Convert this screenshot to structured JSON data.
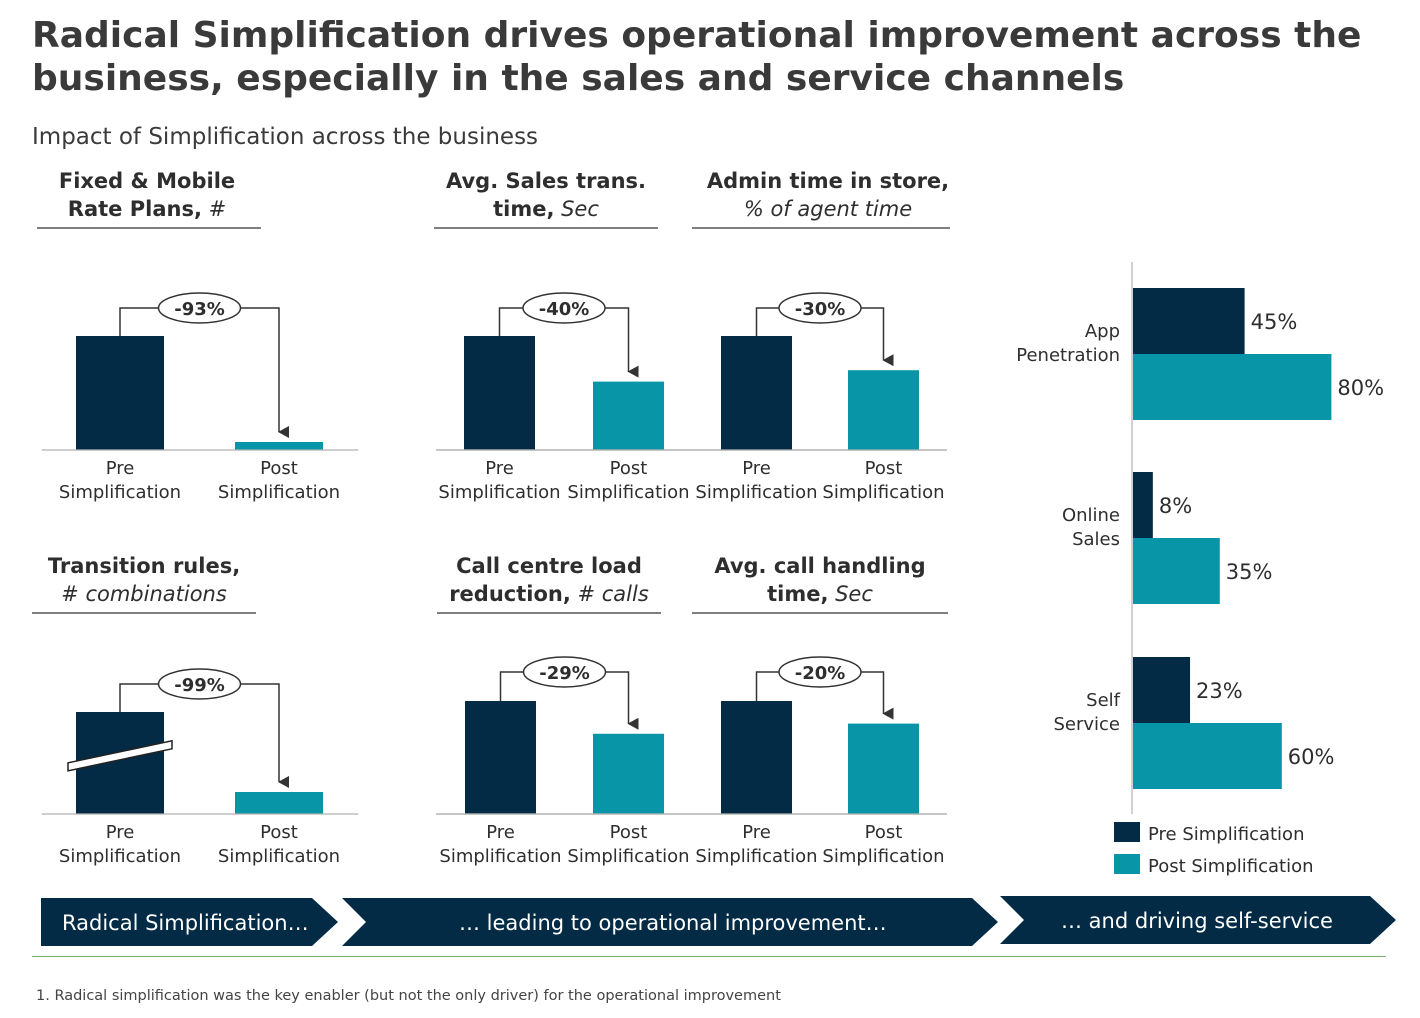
{
  "title": {
    "line1": "Radical Simplification drives operational improvement across the",
    "line2": "business, especially in the sales and service channels"
  },
  "subtitle": "Impact of Simplification across the business",
  "colors": {
    "pre": "#042b45",
    "post": "#0795a7",
    "text": "#2e2e2e",
    "axis": "#b0b0b0"
  },
  "category_labels": {
    "pre": [
      "Pre",
      "Simplification"
    ],
    "post": [
      "Post",
      "Simplification"
    ]
  },
  "chart_data": [
    {
      "type": "bar",
      "title_lines": [
        {
          "bold": "Fixed & Mobile"
        },
        {
          "bold": "Rate Plans,",
          "italic": " #"
        }
      ],
      "categories": [
        "Pre Simplification",
        "Post Simplification"
      ],
      "values": [
        100,
        7
      ],
      "change_label": "-93%"
    },
    {
      "type": "bar",
      "title_lines": [
        {
          "bold": "Avg. Sales trans."
        },
        {
          "bold": "time,",
          "italic": " Sec"
        }
      ],
      "categories": [
        "Pre Simplification",
        "Post Simplification"
      ],
      "values": [
        100,
        60
      ],
      "change_label": "-40%"
    },
    {
      "type": "bar",
      "title_lines": [
        {
          "bold": "Admin time in store,"
        },
        {
          "italic": "% of agent time"
        }
      ],
      "categories": [
        "Pre Simplification",
        "Post Simplification"
      ],
      "values": [
        100,
        70
      ],
      "change_label": "-30%"
    },
    {
      "type": "bar",
      "title_lines": [
        {
          "bold": "Transition rules,"
        },
        {
          "italic": "# combinations"
        }
      ],
      "categories": [
        "Pre Simplification",
        "Post Simplification"
      ],
      "values": [
        100,
        1
      ],
      "axis_break": true,
      "change_label": "-99%"
    },
    {
      "type": "bar",
      "title_lines": [
        {
          "bold": "Call centre load"
        },
        {
          "bold": "reduction,",
          "italic": " # calls"
        }
      ],
      "categories": [
        "Pre Simplification",
        "Post Simplification"
      ],
      "values": [
        100,
        71
      ],
      "change_label": "-29%"
    },
    {
      "type": "bar",
      "title_lines": [
        {
          "bold": "Avg. call handling"
        },
        {
          "bold": "time,",
          "italic": " Sec"
        }
      ],
      "categories": [
        "Pre Simplification",
        "Post Simplification"
      ],
      "values": [
        100,
        80
      ],
      "change_label": "-20%"
    },
    {
      "type": "bar",
      "orientation": "horizontal",
      "categories": [
        [
          "App",
          "Penetration"
        ],
        [
          "Online",
          "Sales"
        ],
        [
          "Self",
          "Service"
        ]
      ],
      "series": [
        {
          "name": "Pre Simplification",
          "values": [
            45,
            8,
            23
          ],
          "labels": [
            "45%",
            "8%",
            "23%"
          ]
        },
        {
          "name": "Post Simplification",
          "values": [
            80,
            35,
            60
          ],
          "labels": [
            "80%",
            "35%",
            "60%"
          ]
        }
      ],
      "xlim": [
        0,
        100
      ],
      "legend_position": "bottom"
    }
  ],
  "chevrons": [
    "Radical Simplification…",
    "… leading to operational improvement…",
    "… and driving self-service"
  ],
  "footnote": "1. Radical simplification was the key enabler (but not the only driver) for the operational improvement"
}
